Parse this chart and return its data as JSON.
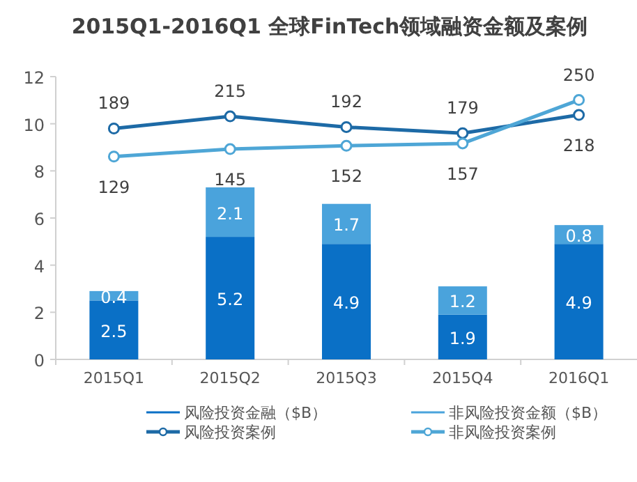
{
  "chart_data": {
    "type": "bar",
    "title": "2015Q1-2016Q1  全球FinTech领域融资金额及案例",
    "categories": [
      "2015Q1",
      "2015Q2",
      "2015Q3",
      "2015Q4",
      "2016Q1"
    ],
    "stacked": true,
    "ylim": [
      0,
      12
    ],
    "yticks": [
      0,
      2,
      4,
      6,
      8,
      10,
      12
    ],
    "y2lim": [
      -305,
      300
    ],
    "legend": "bottom",
    "data_labels": true,
    "series": [
      {
        "name": "风险投资金融（$B）",
        "color": "#0a70c6",
        "values": [
          2.5,
          5.2,
          4.9,
          1.9,
          4.9
        ]
      },
      {
        "name": "非风险投资金额（$B）",
        "color": "#4aa3dc",
        "values": [
          0.4,
          2.1,
          1.7,
          1.2,
          0.8
        ]
      },
      {
        "name": "风险投资案例",
        "type": "line",
        "axis": "y2",
        "marker": "circle",
        "color": "#1d6aa6",
        "values": [
          189,
          215,
          192,
          179,
          218
        ]
      },
      {
        "name": "非风险投资案例",
        "type": "line",
        "axis": "y2",
        "marker": "circle",
        "color": "#4ea6d6",
        "values": [
          129,
          145,
          152,
          157,
          250
        ]
      }
    ]
  }
}
